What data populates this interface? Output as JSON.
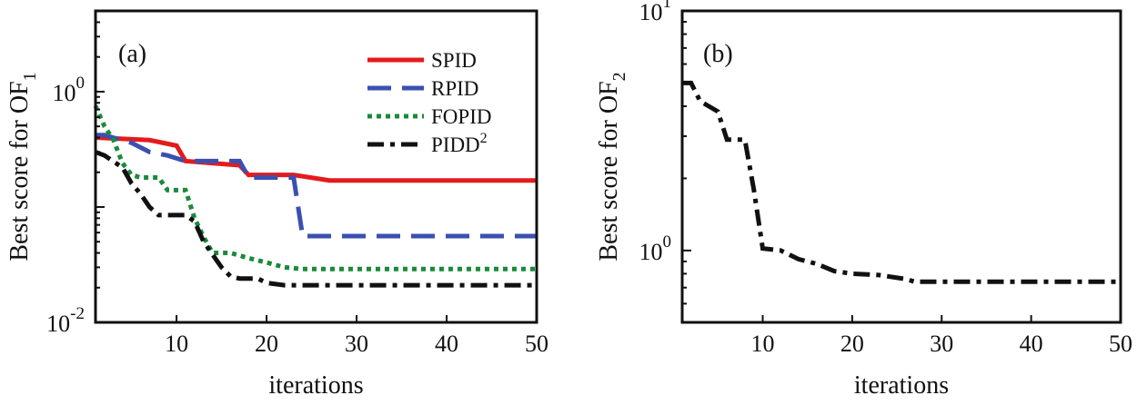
{
  "chart_data": [
    {
      "type": "line",
      "panel_label": "(a)",
      "xlabel": "iterations",
      "ylabel": "Best score for OF",
      "ylabel_sub": "1",
      "yscale": "log",
      "xlim": [
        1,
        50
      ],
      "ylim_exp": [
        -2,
        0.7
      ],
      "xticks": [
        10,
        20,
        30,
        40,
        50
      ],
      "yticks": [
        {
          "base": "10",
          "exp": "-2",
          "value_exp": -2
        },
        {
          "base": "10",
          "exp": "0",
          "value_exp": 0
        }
      ],
      "legend_position": "top-right",
      "series": [
        {
          "name": "SPID",
          "name_sup": "",
          "color": "#e41a1c",
          "dash": "solid",
          "x": [
            1,
            7,
            10,
            11,
            17,
            18,
            23,
            27,
            50
          ],
          "y": [
            0.4,
            0.38,
            0.34,
            0.25,
            0.23,
            0.19,
            0.19,
            0.17,
            0.17
          ]
        },
        {
          "name": "RPID",
          "name_sup": "",
          "color": "#3b50b0",
          "dash": "dashed",
          "x": [
            1,
            2,
            5,
            7,
            9,
            11,
            17,
            18,
            23,
            24,
            50
          ],
          "y": [
            0.42,
            0.42,
            0.36,
            0.3,
            0.28,
            0.25,
            0.25,
            0.18,
            0.18,
            0.056,
            0.056
          ]
        },
        {
          "name": "FOPID",
          "name_sup": "",
          "color": "#1a8a3a",
          "dash": "dotted",
          "x": [
            1,
            2,
            3,
            4,
            5,
            6,
            8,
            9,
            11,
            12,
            13,
            14,
            16,
            18,
            20,
            22,
            24,
            50
          ],
          "y": [
            0.75,
            0.5,
            0.38,
            0.24,
            0.19,
            0.18,
            0.18,
            0.14,
            0.14,
            0.08,
            0.055,
            0.04,
            0.04,
            0.036,
            0.033,
            0.03,
            0.029,
            0.029
          ]
        },
        {
          "name": "PIDD",
          "name_sup": "2",
          "color": "#111111",
          "dash": "dashdot",
          "x": [
            1,
            2,
            4,
            5,
            6,
            7,
            8,
            11,
            12,
            13,
            15,
            16,
            17,
            19,
            20,
            22,
            50
          ],
          "y": [
            0.3,
            0.28,
            0.22,
            0.16,
            0.13,
            0.1,
            0.085,
            0.085,
            0.075,
            0.05,
            0.03,
            0.025,
            0.024,
            0.024,
            0.022,
            0.021,
            0.021
          ]
        }
      ]
    },
    {
      "type": "line",
      "panel_label": "(b)",
      "xlabel": "iterations",
      "ylabel": "Best score for OF",
      "ylabel_sub": "2",
      "yscale": "log",
      "xlim": [
        1,
        50
      ],
      "ylim_exp": [
        -0.3,
        1
      ],
      "xticks": [
        10,
        20,
        30,
        40,
        50
      ],
      "yticks": [
        {
          "base": "10",
          "exp": "0",
          "value_exp": 0
        },
        {
          "base": "10",
          "exp": "1",
          "value_exp": 1
        }
      ],
      "series": [
        {
          "name": "PIDD2",
          "color": "#111111",
          "dash": "dashdot",
          "x": [
            1,
            2,
            3,
            5,
            6,
            8,
            9,
            10,
            12,
            14,
            16,
            18,
            20,
            23,
            26,
            27,
            50
          ],
          "y": [
            5.0,
            5.0,
            4.2,
            3.8,
            2.9,
            2.9,
            1.8,
            1.02,
            1.0,
            0.92,
            0.88,
            0.82,
            0.8,
            0.79,
            0.76,
            0.74,
            0.74
          ]
        }
      ]
    }
  ]
}
